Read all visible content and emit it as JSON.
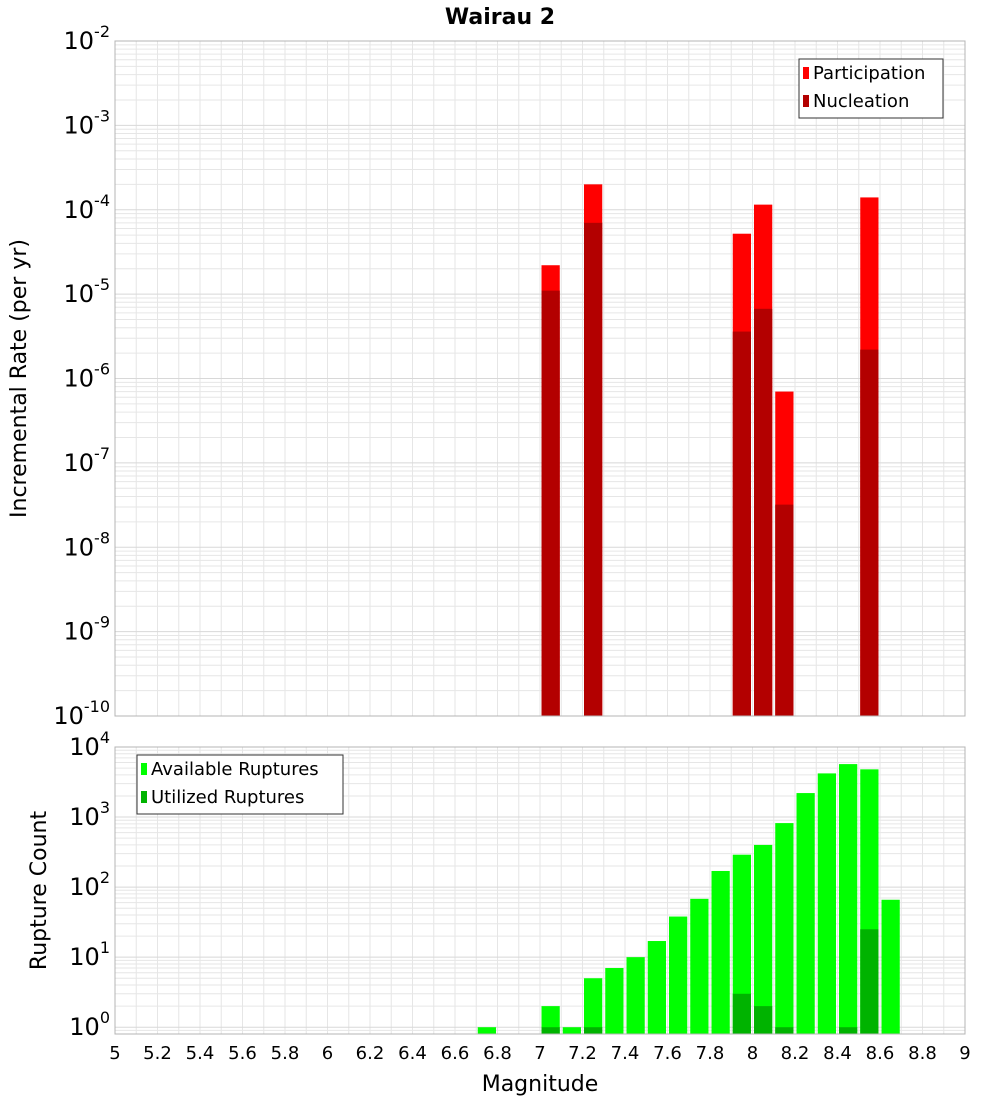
{
  "title": "Wairau 2",
  "xlabel": "Magnitude",
  "x_ticks": [
    "5",
    "5.2",
    "5.4",
    "5.6",
    "5.8",
    "6",
    "6.2",
    "6.4",
    "6.6",
    "6.8",
    "7",
    "7.2",
    "7.4",
    "7.6",
    "7.8",
    "8",
    "8.2",
    "8.4",
    "8.6",
    "8.8",
    "9"
  ],
  "colors": {
    "participation": "#ff0000",
    "nucleation": "#b30000",
    "available": "#00ff00",
    "utilized": "#00b300",
    "grid": "#e6e6e6",
    "frame": "#b4b4b4"
  },
  "chart_data": [
    {
      "type": "bar",
      "ylabel": "Incremental Rate (per yr)",
      "y_scale": "log",
      "xlim": [
        5,
        9
      ],
      "ylim": [
        1e-10,
        0.01
      ],
      "y_tick_exponents": [
        "-2",
        "-3",
        "-4",
        "-5",
        "-6",
        "-7",
        "-8",
        "-9",
        "-10"
      ],
      "legend": "top-right",
      "bar_width": 0.1,
      "x": [
        7.05,
        7.25,
        7.95,
        8.05,
        8.15,
        8.55
      ],
      "series": [
        {
          "name": "Participation",
          "key": "participation",
          "values": [
            2.2e-05,
            0.0002,
            5.2e-05,
            0.000115,
            7e-07,
            0.00014
          ]
        },
        {
          "name": "Nucleation",
          "key": "nucleation",
          "values": [
            1.1e-05,
            7e-05,
            3.6e-06,
            6.7e-06,
            3.2e-08,
            2.2e-06
          ]
        }
      ]
    },
    {
      "type": "bar",
      "ylabel": "Rupture Count",
      "y_scale": "log",
      "xlim": [
        5,
        9
      ],
      "ylim": [
        0.8,
        10000
      ],
      "y_tick_exponents": [
        "4",
        "3",
        "2",
        "1",
        "0"
      ],
      "legend": "top-left",
      "bar_width": 0.1,
      "x": [
        6.75,
        7.05,
        7.15,
        7.25,
        7.35,
        7.45,
        7.55,
        7.65,
        7.75,
        7.85,
        7.95,
        8.05,
        8.15,
        8.25,
        8.35,
        8.45,
        8.55,
        8.65
      ],
      "series": [
        {
          "name": "Available Ruptures",
          "key": "available",
          "values": [
            1,
            2,
            1,
            5,
            7,
            10,
            17,
            38,
            68,
            170,
            290,
            400,
            820,
            2200,
            4200,
            5700,
            4800,
            66
          ]
        },
        {
          "name": "Utilized Ruptures",
          "key": "utilized",
          "values": [
            0,
            1,
            0,
            1,
            0,
            0,
            0,
            0,
            0,
            0,
            3,
            2,
            1,
            0,
            0,
            1,
            25,
            0
          ]
        }
      ]
    }
  ]
}
